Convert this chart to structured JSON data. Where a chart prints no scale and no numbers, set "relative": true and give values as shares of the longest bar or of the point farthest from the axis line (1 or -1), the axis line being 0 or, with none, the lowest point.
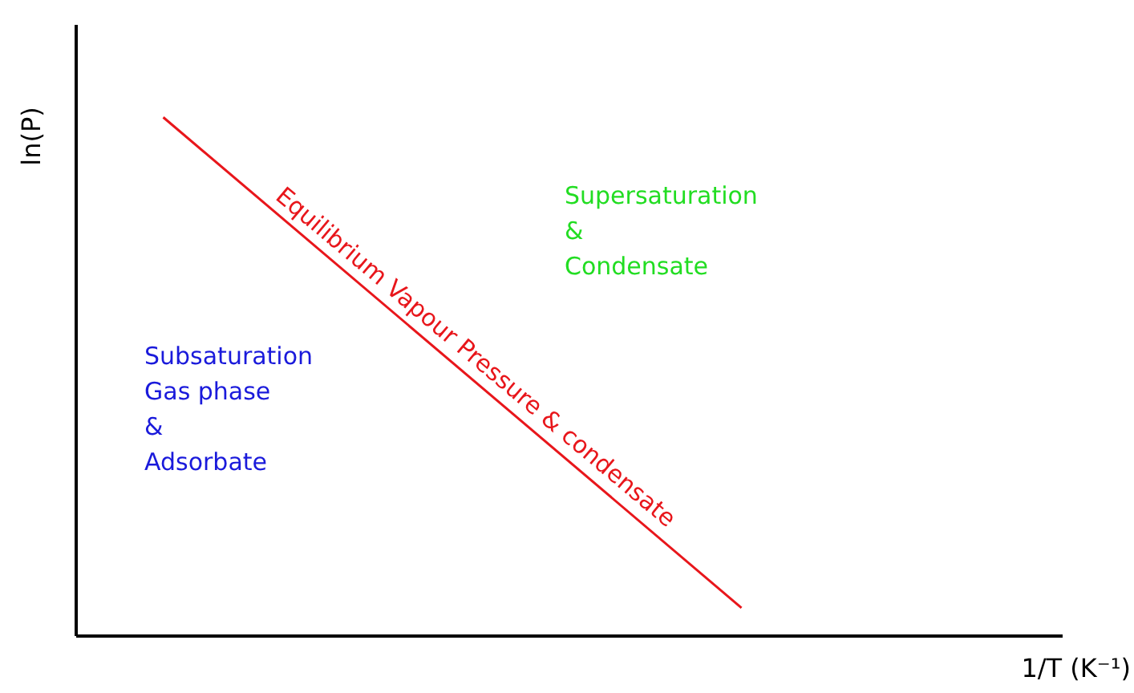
{
  "chart_data": {
    "type": "line",
    "relative": true,
    "xlabel": "1/T (K⁻¹)",
    "ylabel": "ln(P)",
    "categories": [
      null,
      null
    ],
    "series": [
      {
        "name": "Equilibrium Vapour Pressure & condensate",
        "color": "#e8161b",
        "values": [
          1,
          0.053
        ]
      }
    ],
    "annotations": [
      "Supersaturation\n&\nCondensate",
      "Subsaturation\nGas phase\n&\nAdsorbate"
    ],
    "grid": false
  }
}
